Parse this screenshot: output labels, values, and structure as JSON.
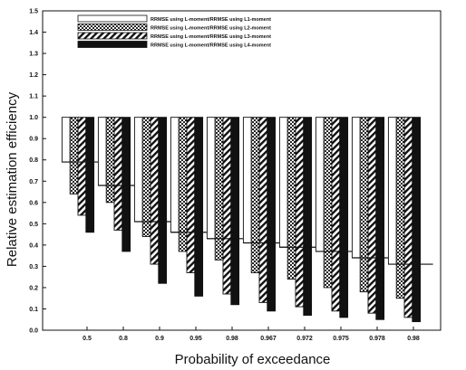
{
  "chart_data": {
    "type": "bar",
    "xlabel": "Probability  of  exceedance",
    "ylabel": "Relative estimation  efficiency",
    "ylim": [
      0,
      1.5
    ],
    "yticks": [
      "0.0",
      "0.1",
      "0.2",
      "0.3",
      "0.4",
      "0.5",
      "0.6",
      "0.7",
      "0.8",
      "0.9",
      "1.0",
      "1.1",
      "1.2",
      "1.3",
      "1.4",
      "1.5"
    ],
    "categories": [
      "0.5",
      "0.8",
      "0.9",
      "0.95",
      "0.98",
      "0.967",
      "0.972",
      "0.975",
      "0.978",
      "0.98"
    ],
    "legend_position": "top-left",
    "series": [
      {
        "name": "RRMSE using L-moment/RRMSE using L1-moment",
        "pattern": "white",
        "values": [
          0.79,
          0.68,
          0.51,
          0.46,
          0.43,
          0.41,
          0.39,
          0.37,
          0.34,
          0.31
        ]
      },
      {
        "name": "RRMSE using L-moment/RRMSE using L2-moment",
        "pattern": "dots",
        "values": [
          0.64,
          0.6,
          0.44,
          0.37,
          0.33,
          0.27,
          0.24,
          0.2,
          0.18,
          0.15
        ]
      },
      {
        "name": "RRMSE using L-moment/RRMSE using L3-moment",
        "pattern": "hatch",
        "values": [
          0.54,
          0.47,
          0.31,
          0.27,
          0.17,
          0.13,
          0.11,
          0.09,
          0.08,
          0.06
        ]
      },
      {
        "name": "RRMSE using L-moment/RRMSE using L4-moment",
        "pattern": "black",
        "values": [
          0.46,
          0.37,
          0.22,
          0.16,
          0.12,
          0.09,
          0.07,
          0.06,
          0.05,
          0.04
        ]
      }
    ],
    "caps_value": 1.0
  }
}
